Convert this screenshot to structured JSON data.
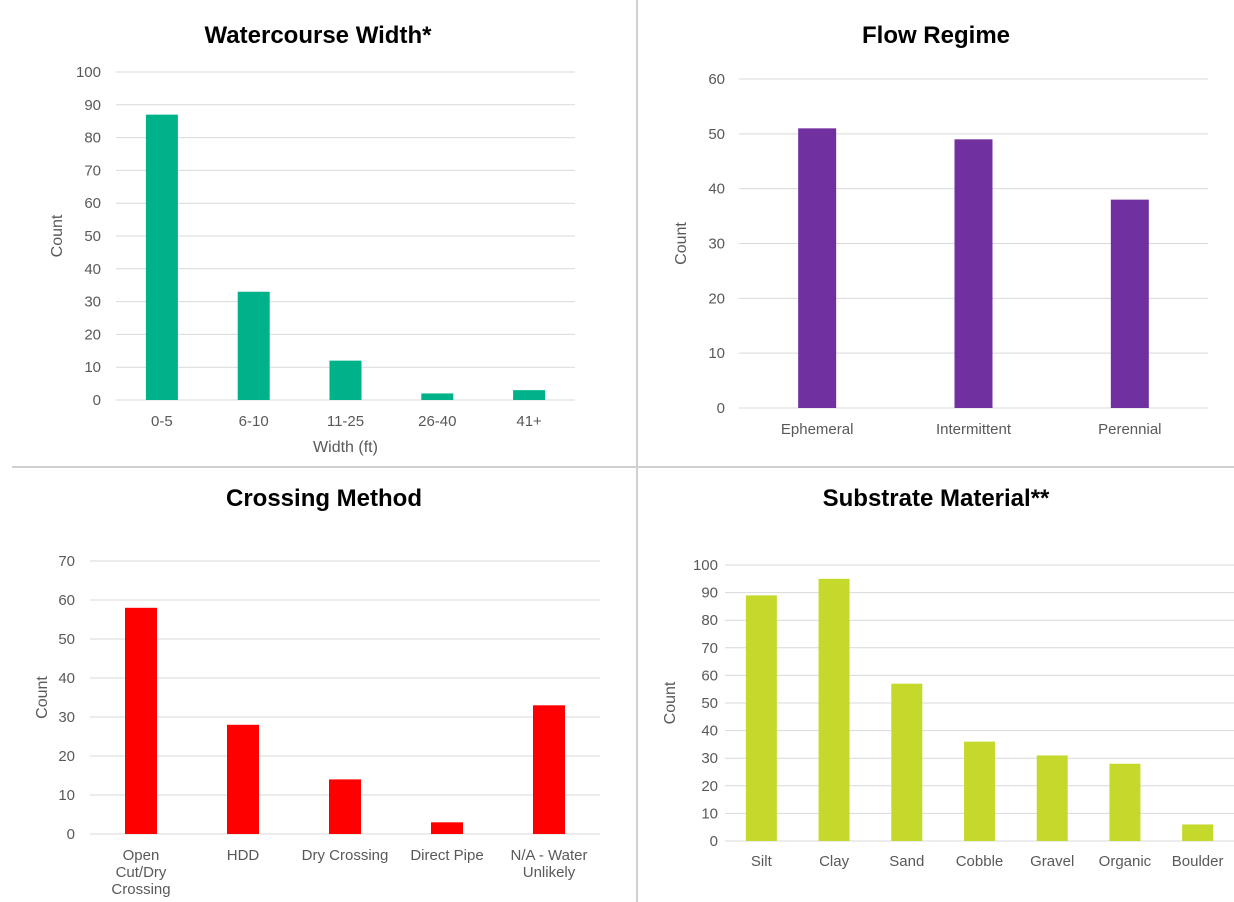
{
  "chart_data": [
    {
      "type": "bar",
      "title": "Watercourse Width*",
      "xlabel": "Width (ft)",
      "ylabel": "Count",
      "categories": [
        "0-5",
        "6-10",
        "11-25",
        "26-40",
        "41+"
      ],
      "values": [
        87,
        33,
        12,
        2,
        3
      ],
      "ylim": [
        0,
        100
      ],
      "yticks": [
        0,
        10,
        20,
        30,
        40,
        50,
        60,
        70,
        80,
        90,
        100
      ],
      "color": "#00b28a",
      "grid": true
    },
    {
      "type": "bar",
      "title": "Flow Regime",
      "xlabel": "",
      "ylabel": "Count",
      "categories": [
        "Ephemeral",
        "Intermittent",
        "Perennial"
      ],
      "values": [
        51,
        49,
        38
      ],
      "ylim": [
        0,
        60
      ],
      "yticks": [
        0,
        10,
        20,
        30,
        40,
        50,
        60
      ],
      "color": "#7030a0",
      "grid": true
    },
    {
      "type": "bar",
      "title": "Crossing Method",
      "xlabel": "",
      "ylabel": "Count",
      "categories": [
        [
          "Open",
          "Cut/Dry",
          "Crossing"
        ],
        [
          "HDD"
        ],
        [
          "Dry Crossing"
        ],
        [
          "Direct Pipe"
        ],
        [
          "N/A - Water",
          "Unlikely"
        ]
      ],
      "values": [
        58,
        28,
        14,
        3,
        33
      ],
      "ylim": [
        0,
        70
      ],
      "yticks": [
        0,
        10,
        20,
        30,
        40,
        50,
        60,
        70
      ],
      "color": "#ff0000",
      "grid": true
    },
    {
      "type": "bar",
      "title": "Substrate Material**",
      "xlabel": "",
      "ylabel": "Count",
      "categories": [
        "Silt",
        "Clay",
        "Sand",
        "Cobble",
        "Gravel",
        "Organic",
        "Boulder"
      ],
      "values": [
        89,
        95,
        57,
        36,
        31,
        28,
        6
      ],
      "ylim": [
        0,
        100
      ],
      "yticks": [
        0,
        10,
        20,
        30,
        40,
        50,
        60,
        70,
        80,
        90,
        100
      ],
      "color": "#c5d92d",
      "grid": true
    }
  ]
}
